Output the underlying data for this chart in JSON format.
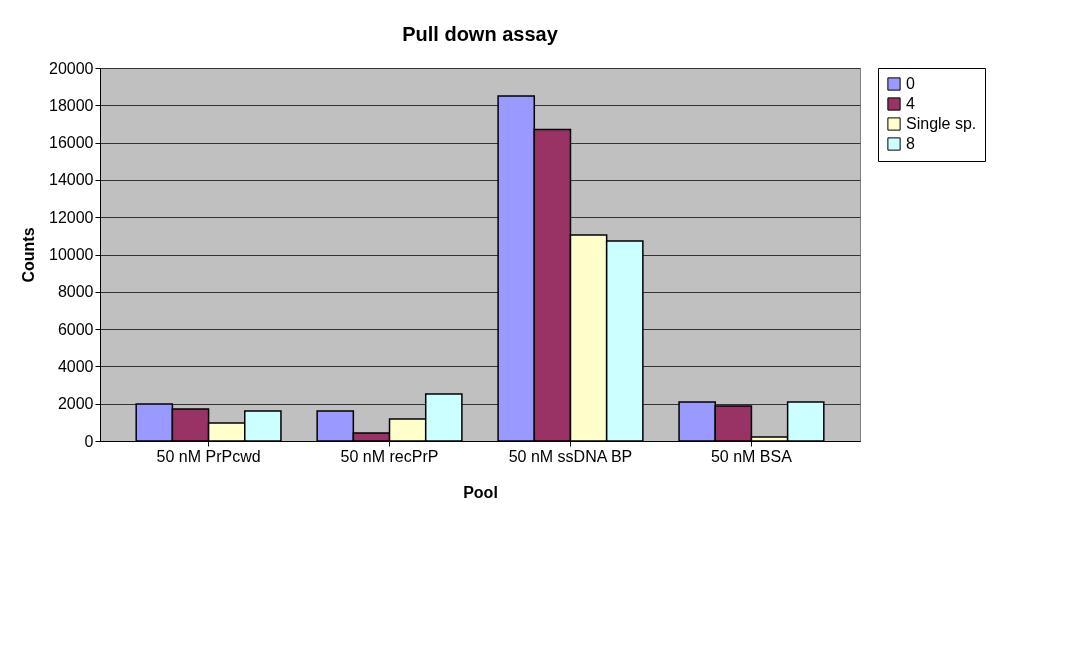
{
  "chart_data": {
    "type": "bar",
    "title": "Pull down assay",
    "xlabel": "Pool",
    "ylabel": "Counts",
    "categories": [
      "50 nM PrPcwd",
      "50 nM recPrP",
      "50 nM ssDNA BP",
      "50 nM BSA"
    ],
    "series": [
      {
        "name": "0",
        "color": "#9999ff",
        "values": [
          1980,
          1610,
          18500,
          2090
        ]
      },
      {
        "name": "4",
        "color": "#993366",
        "values": [
          1720,
          430,
          16700,
          1880
        ]
      },
      {
        "name": "Single sp.",
        "color": "#ffffcc",
        "values": [
          970,
          1180,
          11050,
          210
        ]
      },
      {
        "name": "8",
        "color": "#ccffff",
        "values": [
          1610,
          2520,
          10720,
          2090
        ]
      }
    ],
    "ylim": [
      0,
      20000
    ],
    "yticks": [
      0,
      2000,
      4000,
      6000,
      8000,
      10000,
      12000,
      14000,
      16000,
      18000,
      20000
    ],
    "grid": "y",
    "legend": "right"
  }
}
